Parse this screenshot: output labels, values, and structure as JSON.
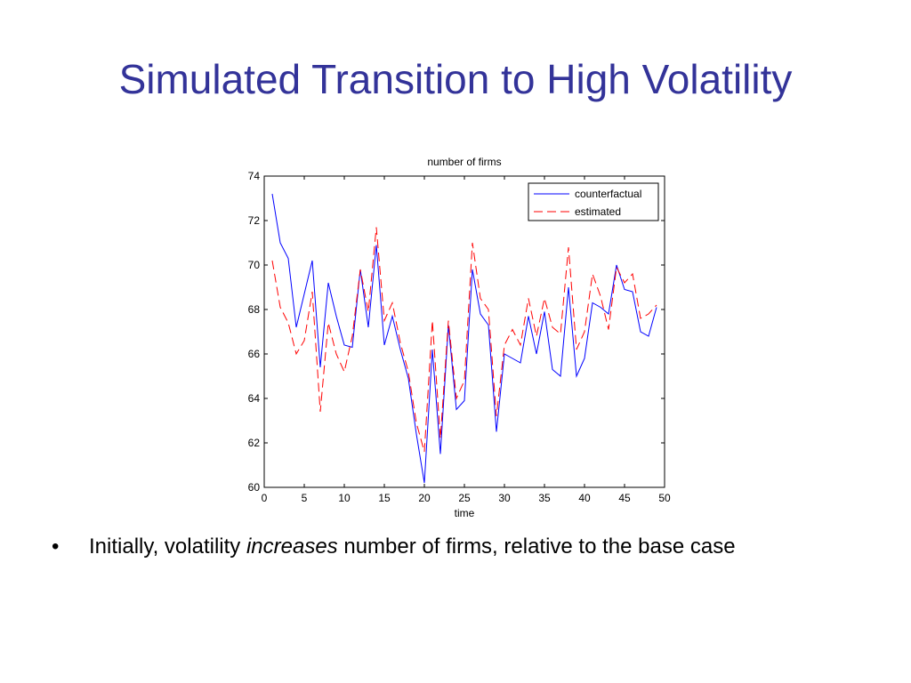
{
  "slide": {
    "title": "Simulated Transition to High Volatility",
    "bullet": {
      "glyph": "•",
      "text_before": "Initially, volatility",
      "emphasis": "increases",
      "text_after": "number of firms, relative to the base case"
    }
  },
  "chart_data": {
    "type": "line",
    "title": "number of firms",
    "xlabel": "time",
    "ylabel": "",
    "xlim": [
      0,
      50
    ],
    "ylim": [
      60,
      74
    ],
    "xticks": [
      0,
      5,
      10,
      15,
      20,
      25,
      30,
      35,
      40,
      45,
      50
    ],
    "yticks": [
      60,
      62,
      64,
      66,
      68,
      70,
      72,
      74
    ],
    "grid": false,
    "legend_position": "top-right",
    "x": [
      1,
      2,
      3,
      4,
      5,
      6,
      7,
      8,
      9,
      10,
      11,
      12,
      13,
      14,
      15,
      16,
      17,
      18,
      19,
      20,
      21,
      22,
      23,
      24,
      25,
      26,
      27,
      28,
      29,
      30,
      31,
      32,
      33,
      34,
      35,
      36,
      37,
      38,
      39,
      40,
      41,
      42,
      43,
      44,
      45,
      46,
      47,
      48,
      49
    ],
    "series": [
      {
        "name": "counterfactual",
        "color": "#0000ff",
        "dash": "solid",
        "values": [
          73.2,
          71.0,
          70.3,
          67.2,
          68.7,
          70.2,
          65.4,
          69.2,
          67.7,
          66.4,
          66.3,
          69.8,
          67.2,
          70.9,
          66.4,
          67.7,
          66.2,
          64.9,
          62.4,
          60.2,
          66.2,
          61.5,
          67.3,
          63.5,
          63.9,
          69.8,
          67.8,
          67.3,
          62.5,
          66.0,
          65.8,
          65.6,
          67.7,
          66.0,
          67.9,
          65.3,
          65.0,
          69.0,
          65.0,
          65.8,
          68.3,
          68.1,
          67.8,
          70.0,
          68.9,
          68.8,
          67.0,
          66.8,
          68.1
        ]
      },
      {
        "name": "estimated",
        "color": "#ff0000",
        "dash": "dashed",
        "values": [
          70.2,
          68.1,
          67.4,
          66.0,
          66.6,
          68.8,
          63.4,
          67.4,
          66.0,
          65.2,
          66.8,
          69.8,
          67.9,
          71.7,
          67.5,
          68.3,
          66.5,
          65.2,
          62.9,
          61.6,
          67.5,
          62.2,
          67.5,
          64.0,
          64.8,
          71.0,
          68.5,
          68.0,
          63.2,
          66.4,
          67.1,
          66.4,
          68.5,
          66.8,
          68.5,
          67.2,
          66.9,
          70.8,
          66.2,
          67.0,
          69.6,
          68.6,
          67.1,
          69.9,
          69.2,
          69.6,
          67.6,
          67.8,
          68.2
        ]
      }
    ]
  }
}
